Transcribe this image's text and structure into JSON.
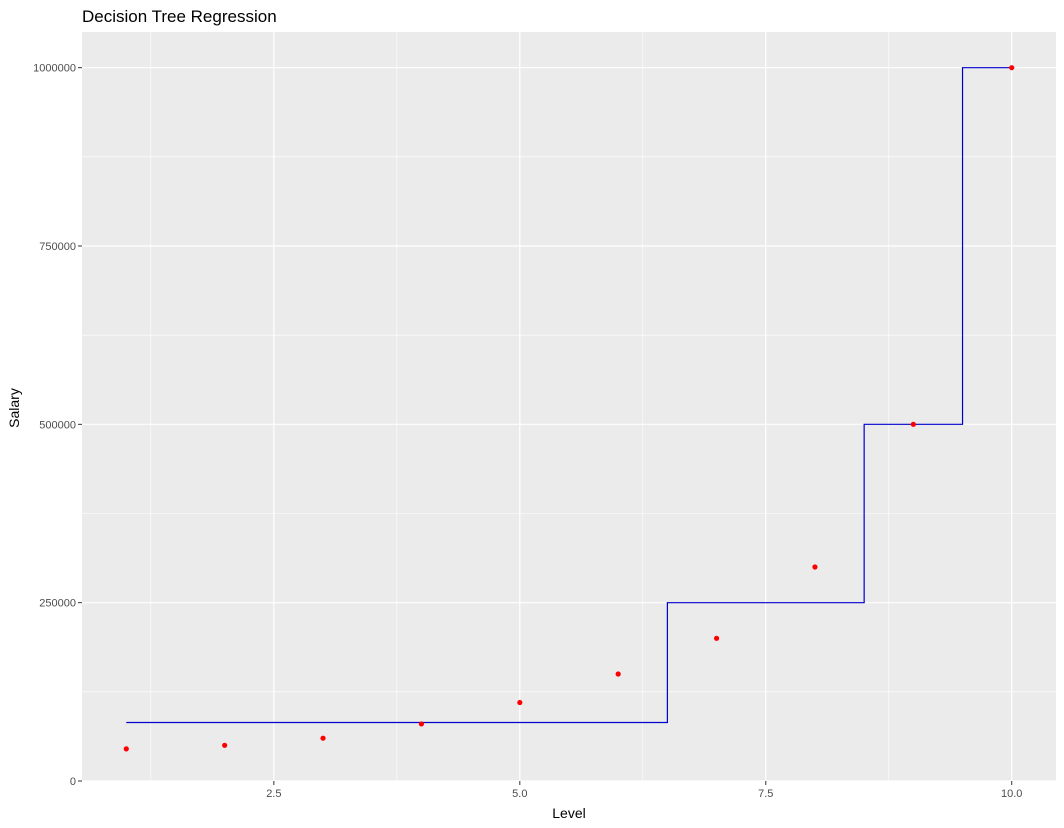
{
  "chart_data": {
    "type": "scatter",
    "title": "Decision Tree Regression",
    "xlabel": "Level",
    "ylabel": "Salary",
    "xlim": [
      0.55,
      10.45
    ],
    "ylim": [
      0,
      1050000
    ],
    "x_ticks": [
      2.5,
      5.0,
      7.5,
      10.0
    ],
    "x_tick_labels": [
      "2.5",
      "5.0",
      "7.5",
      "10.0"
    ],
    "y_ticks": [
      0,
      250000,
      500000,
      750000,
      1000000
    ],
    "y_tick_labels": [
      "0",
      "250000",
      "500000",
      "750000",
      "1000000"
    ],
    "grid": true,
    "background": "#ebebeb",
    "grid_color": "#ffffff",
    "series": [
      {
        "kind": "points",
        "color": "#ff0000",
        "x": [
          1,
          2,
          3,
          4,
          5,
          6,
          7,
          8,
          9,
          10
        ],
        "y": [
          45000,
          50000,
          60000,
          80000,
          110000,
          150000,
          200000,
          300000,
          500000,
          1000000
        ]
      },
      {
        "kind": "step-line",
        "color": "#0000cc",
        "steps": [
          {
            "x0": 1.0,
            "x1": 6.5,
            "y": 82000
          },
          {
            "x0": 6.5,
            "x1": 8.5,
            "y": 250000
          },
          {
            "x0": 8.5,
            "x1": 9.5,
            "y": 500000
          },
          {
            "x0": 9.5,
            "x1": 10.0,
            "y": 1000000
          }
        ]
      }
    ]
  }
}
